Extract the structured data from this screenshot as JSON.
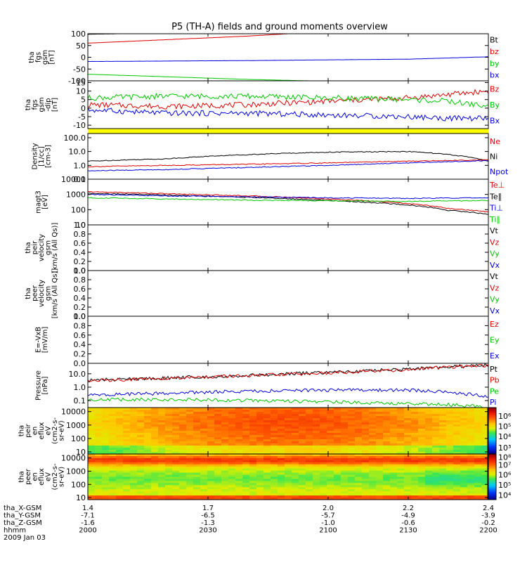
{
  "title": "P5 (TH-A) fields and ground moments overview",
  "colors": {
    "black": "#000000",
    "red": "#e00000",
    "green": "#00c800",
    "blue": "#0000e0",
    "yellow": "#ffff00"
  },
  "chart_data": [
    {
      "type": "line",
      "ylabel": [
        "tha",
        "fgs",
        "gsm",
        "[nT]"
      ],
      "ylim": [
        -100,
        100
      ],
      "yticks": [
        "100",
        "50",
        "0",
        "-50",
        "-100"
      ],
      "ytick_values": [
        100,
        50,
        0,
        -50,
        -100
      ],
      "legend": [
        {
          "name": "Bt",
          "color": "black"
        },
        {
          "name": "bz",
          "color": "red"
        },
        {
          "name": "by",
          "color": "green"
        },
        {
          "name": "bx",
          "color": "blue"
        }
      ],
      "series": [
        {
          "name": "Bt",
          "color": "black",
          "x": [
            1.4,
            1.55
          ],
          "values": [
            98,
            102
          ]
        },
        {
          "name": "bz",
          "color": "red",
          "x": [
            1.4,
            1.6,
            1.8,
            1.9
          ],
          "values": [
            60,
            75,
            90,
            100
          ]
        },
        {
          "name": "by",
          "color": "green",
          "x": [
            1.4,
            1.6,
            1.8,
            2.0
          ],
          "values": [
            -72,
            -83,
            -94,
            -102
          ]
        },
        {
          "name": "bx",
          "color": "blue",
          "x": [
            1.4,
            1.8,
            2.2,
            2.4
          ],
          "values": [
            -18,
            -14,
            -8,
            2
          ]
        }
      ]
    },
    {
      "type": "line",
      "ylabel": [
        "tha",
        "fgs",
        "gsm",
        "-dip",
        "[nT]"
      ],
      "ylim": [
        -12,
        16
      ],
      "yticks": [
        "15",
        "10",
        "5",
        "0",
        "-5",
        "-10"
      ],
      "ytick_values": [
        15,
        10,
        5,
        0,
        -5,
        -10
      ],
      "legend": [
        {
          "name": "Bz",
          "color": "red"
        },
        {
          "name": "By",
          "color": "green"
        },
        {
          "name": "Bx",
          "color": "blue"
        }
      ],
      "series": [
        {
          "name": "Bz",
          "color": "red",
          "x": [
            1.4,
            1.6,
            1.8,
            2.0,
            2.2,
            2.3,
            2.4
          ],
          "values": [
            2,
            1,
            2,
            4,
            6,
            8,
            10
          ]
        },
        {
          "name": "By",
          "color": "green",
          "x": [
            1.4,
            1.6,
            1.8,
            2.0,
            2.2,
            2.3,
            2.4
          ],
          "values": [
            6,
            7,
            7,
            6,
            5,
            4,
            1
          ]
        },
        {
          "name": "Bx",
          "color": "blue",
          "x": [
            1.4,
            1.6,
            1.8,
            2.0,
            2.2,
            2.3,
            2.4
          ],
          "values": [
            -1,
            -3,
            -3,
            -4,
            -5,
            -6,
            -6
          ]
        }
      ]
    },
    {
      "type": "line",
      "ylabel": [
        "Density",
        "[1/cc]",
        "[cm-3]"
      ],
      "yscale": "log",
      "ylim": [
        0.1,
        200
      ],
      "yticks": [
        "100.0",
        "10.0",
        "1.0",
        "0.1"
      ],
      "ytick_values": [
        100,
        10,
        1,
        0.1
      ],
      "legend": [
        {
          "name": "Ne",
          "color": "red"
        },
        {
          "name": "Ni",
          "color": "black"
        },
        {
          "name": "Npot",
          "color": "blue"
        }
      ],
      "series": [
        {
          "name": "Ni",
          "color": "black",
          "x": [
            1.4,
            1.6,
            1.8,
            2.0,
            2.2,
            2.3,
            2.4
          ],
          "values": [
            2,
            3,
            6,
            9,
            10,
            6,
            2
          ]
        },
        {
          "name": "Ne",
          "color": "red",
          "x": [
            1.4,
            1.6,
            1.8,
            2.0,
            2.2,
            2.4
          ],
          "values": [
            0.8,
            1,
            1.2,
            1.5,
            2,
            2.5
          ]
        },
        {
          "name": "Npot",
          "color": "blue",
          "x": [
            1.4,
            1.6,
            1.8,
            2.0,
            2.2,
            2.4
          ],
          "values": [
            0.4,
            0.5,
            0.7,
            1,
            1.5,
            2.2
          ]
        }
      ]
    },
    {
      "type": "line",
      "ylabel": [
        "magt3",
        "[eV]"
      ],
      "yscale": "log",
      "ylim": [
        10,
        10000
      ],
      "yticks": [
        "10000",
        "1000",
        "100",
        "10"
      ],
      "ytick_values": [
        10000,
        1000,
        100,
        10
      ],
      "legend": [
        {
          "name": "Te⊥",
          "color": "red"
        },
        {
          "name": "Te∥",
          "color": "black"
        },
        {
          "name": "Ti⊥",
          "color": "blue"
        },
        {
          "name": "Ti∥",
          "color": "green"
        }
      ],
      "series": [
        {
          "name": "Te⊥",
          "color": "red",
          "x": [
            1.4,
            1.6,
            1.8,
            2.0,
            2.2,
            2.3,
            2.4
          ],
          "values": [
            1500,
            1100,
            800,
            500,
            250,
            120,
            70
          ]
        },
        {
          "name": "Te∥",
          "color": "black",
          "x": [
            1.4,
            1.6,
            1.8,
            2.0,
            2.2,
            2.3,
            2.4
          ],
          "values": [
            1200,
            900,
            650,
            400,
            200,
            90,
            50
          ]
        },
        {
          "name": "Ti⊥",
          "color": "blue",
          "x": [
            1.4,
            1.6,
            1.8,
            2.0,
            2.2,
            2.4
          ],
          "values": [
            1000,
            800,
            700,
            600,
            550,
            600
          ]
        },
        {
          "name": "Ti∥",
          "color": "green",
          "x": [
            1.4,
            1.6,
            1.8,
            2.0,
            2.2,
            2.4
          ],
          "values": [
            600,
            500,
            420,
            380,
            350,
            400
          ]
        }
      ]
    },
    {
      "type": "line",
      "ylabel": [
        "tha",
        "peir",
        "velocity",
        "gsm",
        "[km/s (All Qs)]"
      ],
      "ylim": [
        0,
        1
      ],
      "yticks": [
        "1.0",
        "0.8",
        "0.6",
        "0.4",
        "0.2",
        "0.0"
      ],
      "ytick_values": [
        1,
        0.8,
        0.6,
        0.4,
        0.2,
        0
      ],
      "legend": [
        {
          "name": "Vt",
          "color": "black"
        },
        {
          "name": "Vz",
          "color": "red"
        },
        {
          "name": "Vy",
          "color": "green"
        },
        {
          "name": "Vx",
          "color": "blue"
        }
      ],
      "series": []
    },
    {
      "type": "line",
      "ylabel": [
        "tha",
        "peer",
        "velocity",
        "gsm",
        "[km/s (All Qs)]"
      ],
      "ylim": [
        0,
        1
      ],
      "yticks": [
        "1.0",
        "0.8",
        "0.6",
        "0.4",
        "0.2",
        "0.0"
      ],
      "ytick_values": [
        1,
        0.8,
        0.6,
        0.4,
        0.2,
        0
      ],
      "legend": [
        {
          "name": "Vt",
          "color": "black"
        },
        {
          "name": "Vz",
          "color": "red"
        },
        {
          "name": "Vy",
          "color": "green"
        },
        {
          "name": "Vx",
          "color": "blue"
        }
      ],
      "series": []
    },
    {
      "type": "line",
      "ylabel": [
        "E=-VxB",
        "[mV/m]"
      ],
      "ylim": [
        0,
        1
      ],
      "yticks": [
        "1.0",
        "0.8",
        "0.6",
        "0.4",
        "0.2",
        "0.0"
      ],
      "ytick_values": [
        1,
        0.8,
        0.6,
        0.4,
        0.2,
        0
      ],
      "legend": [
        {
          "name": "Ez",
          "color": "red"
        },
        {
          "name": "Ey",
          "color": "green"
        },
        {
          "name": "Ex",
          "color": "blue"
        }
      ],
      "series": []
    },
    {
      "type": "line",
      "ylabel": [
        "Pressure",
        "[nPa]"
      ],
      "yscale": "log",
      "ylim": [
        0.03,
        60
      ],
      "yticks": [
        "10.0",
        "1.0",
        "0.1"
      ],
      "ytick_values": [
        10,
        1,
        0.1
      ],
      "legend": [
        {
          "name": "Pt",
          "color": "black"
        },
        {
          "name": "Pb",
          "color": "red"
        },
        {
          "name": "Pe",
          "color": "green"
        },
        {
          "name": "Pi",
          "color": "blue"
        }
      ],
      "series": [
        {
          "name": "Pt",
          "color": "black",
          "x": [
            1.4,
            1.6,
            1.8,
            2.0,
            2.2,
            2.4
          ],
          "values": [
            3.2,
            4.8,
            7.5,
            12,
            22,
            45
          ]
        },
        {
          "name": "Pb",
          "color": "red",
          "x": [
            1.4,
            1.6,
            1.8,
            2.0,
            2.2,
            2.4
          ],
          "values": [
            3,
            4.5,
            7,
            11,
            20,
            42
          ]
        },
        {
          "name": "Pi",
          "color": "blue",
          "x": [
            1.4,
            1.6,
            1.8,
            2.0,
            2.2,
            2.3,
            2.4
          ],
          "values": [
            0.25,
            0.35,
            0.5,
            0.6,
            0.6,
            0.4,
            0.2
          ]
        },
        {
          "name": "Pe",
          "color": "green",
          "x": [
            1.4,
            1.6,
            1.8,
            2.0,
            2.2,
            2.3,
            2.4
          ],
          "values": [
            0.12,
            0.12,
            0.1,
            0.08,
            0.06,
            0.05,
            0.03
          ]
        }
      ]
    },
    {
      "type": "heatmap",
      "ylabel": [
        "tha",
        "peir",
        "en",
        "eflux",
        "eV",
        "(cm2-s-",
        "sr-eV)"
      ],
      "yscale": "log",
      "ylim": [
        7,
        20000
      ],
      "yticks": [
        "10000",
        "1000",
        "100",
        "10"
      ],
      "ytick_values": [
        10000,
        1000,
        100,
        10
      ],
      "colorbar": [
        "10⁶",
        "10⁵",
        "10⁴",
        "10³"
      ],
      "colorbar_fracs": [
        0.18,
        0.4,
        0.62,
        0.86
      ],
      "colorbar_range": [
        3,
        6.5
      ]
    },
    {
      "type": "heatmap",
      "ylabel": [
        "tha",
        "peer",
        "en",
        "eflux",
        "eV",
        "(cm2-s-",
        "sr-eV)"
      ],
      "yscale": "log",
      "ylim": [
        7,
        20000
      ],
      "yticks": [
        "10000",
        "1000",
        "100",
        "10"
      ],
      "ytick_values": [
        10000,
        1000,
        100,
        10
      ],
      "colorbar": [
        "10⁸",
        "10⁷",
        "10⁶",
        "10⁵",
        "10⁴"
      ],
      "colorbar_fracs": [
        0.07,
        0.24,
        0.45,
        0.68,
        0.9
      ],
      "colorbar_range": [
        4,
        8.5
      ]
    }
  ],
  "footer": {
    "rows": [
      {
        "label": "tha_X-GSM",
        "values": [
          "1.4",
          "1.7",
          "2.0",
          "2.2",
          "2.4"
        ]
      },
      {
        "label": "tha_Y-GSM",
        "values": [
          "-7.1",
          "-6.5",
          "-5.7",
          "-4.9",
          "-3.9"
        ]
      },
      {
        "label": "tha_Z-GSM",
        "values": [
          "-1.6",
          "-1.3",
          "-1.0",
          "-0.6",
          "-0.2"
        ]
      },
      {
        "label": "hhmm",
        "values": [
          "2000",
          "2030",
          "2100",
          "2130",
          "2200"
        ]
      }
    ],
    "date": "2009 Jan 03"
  }
}
